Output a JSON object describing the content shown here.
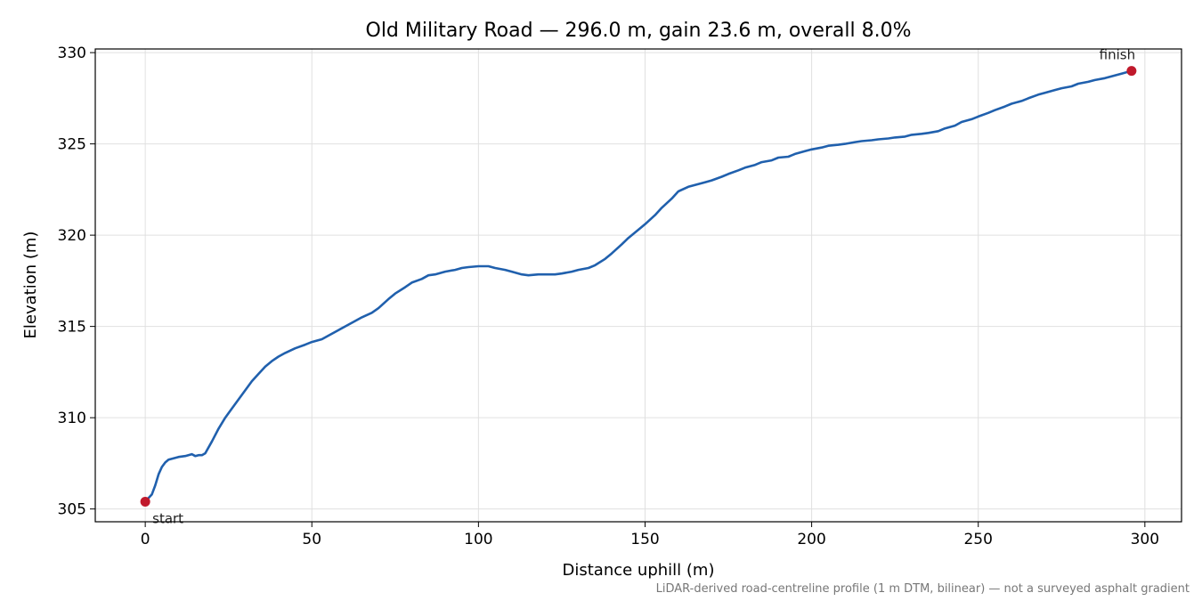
{
  "chart_data": {
    "type": "line",
    "title": "Old Military Road — 296.0 m, gain 23.6 m, overall 8.0%",
    "xlabel": "Distance uphill (m)",
    "ylabel": "Elevation (m)",
    "xlim": [
      -15,
      311
    ],
    "ylim": [
      304.3,
      330.2
    ],
    "xticks": [
      0,
      50,
      100,
      150,
      200,
      250,
      300
    ],
    "yticks": [
      305,
      310,
      315,
      320,
      325,
      330
    ],
    "grid": true,
    "footnote": "LiDAR-derived road-centreline profile (1 m DTM, bilinear) — not a surveyed asphalt gradient",
    "colors": {
      "line": "#2060ad",
      "marker": "#c0192c",
      "grid": "#e0e0e0"
    },
    "series": [
      {
        "x": [
          0,
          2,
          3,
          4,
          5,
          6,
          7,
          8,
          10,
          12,
          14,
          15,
          16,
          17,
          18,
          20,
          22,
          24,
          26,
          28,
          30,
          32,
          34,
          36,
          38,
          40,
          42,
          45,
          48,
          50,
          53,
          55,
          58,
          60,
          63,
          65,
          68,
          70,
          73,
          75,
          78,
          80,
          83,
          85,
          87,
          90,
          93,
          95,
          97,
          100,
          103,
          105,
          108,
          110,
          113,
          115,
          118,
          120,
          123,
          125,
          128,
          130,
          133,
          135,
          138,
          140,
          143,
          145,
          148,
          150,
          153,
          155,
          158,
          160,
          163,
          165,
          168,
          170,
          173,
          175,
          178,
          180,
          183,
          185,
          188,
          190,
          193,
          195,
          198,
          200,
          203,
          205,
          208,
          210,
          213,
          215,
          218,
          220,
          223,
          225,
          228,
          230,
          233,
          235,
          238,
          240,
          243,
          245,
          248,
          250,
          253,
          255,
          258,
          260,
          263,
          265,
          268,
          270,
          273,
          275,
          278,
          280,
          283,
          285,
          288,
          290,
          293,
          296
        ],
        "y": [
          305.4,
          305.8,
          306.3,
          306.9,
          307.3,
          307.55,
          307.7,
          307.75,
          307.85,
          307.9,
          308.0,
          307.9,
          307.95,
          307.95,
          308.05,
          308.7,
          309.4,
          310.0,
          310.5,
          311.0,
          311.5,
          312.0,
          312.4,
          312.8,
          313.1,
          313.35,
          313.55,
          313.8,
          314.0,
          314.15,
          314.3,
          314.5,
          314.8,
          315.0,
          315.3,
          315.5,
          315.75,
          316.0,
          316.5,
          316.8,
          317.15,
          317.4,
          317.6,
          317.8,
          317.85,
          318.0,
          318.1,
          318.2,
          318.25,
          318.3,
          318.3,
          318.2,
          318.1,
          318.0,
          317.85,
          317.8,
          317.85,
          317.85,
          317.85,
          317.9,
          318.0,
          318.1,
          318.2,
          318.35,
          318.7,
          319.0,
          319.5,
          319.85,
          320.3,
          320.6,
          321.1,
          321.5,
          322.0,
          322.4,
          322.65,
          322.75,
          322.9,
          323.0,
          323.2,
          323.35,
          323.55,
          323.7,
          323.85,
          324.0,
          324.1,
          324.25,
          324.3,
          324.45,
          324.6,
          324.7,
          324.8,
          324.9,
          324.95,
          325.0,
          325.1,
          325.15,
          325.2,
          325.25,
          325.3,
          325.35,
          325.4,
          325.5,
          325.55,
          325.6,
          325.7,
          325.85,
          326.0,
          326.2,
          326.35,
          326.5,
          326.7,
          326.85,
          327.05,
          327.2,
          327.35,
          327.5,
          327.7,
          327.8,
          327.95,
          328.05,
          328.15,
          328.3,
          328.4,
          328.5,
          328.6,
          328.7,
          328.85,
          329.0
        ]
      }
    ],
    "markers": [
      {
        "label": "start",
        "x": 0,
        "y": 305.4
      },
      {
        "label": "finish",
        "x": 296,
        "y": 329.0
      }
    ]
  }
}
